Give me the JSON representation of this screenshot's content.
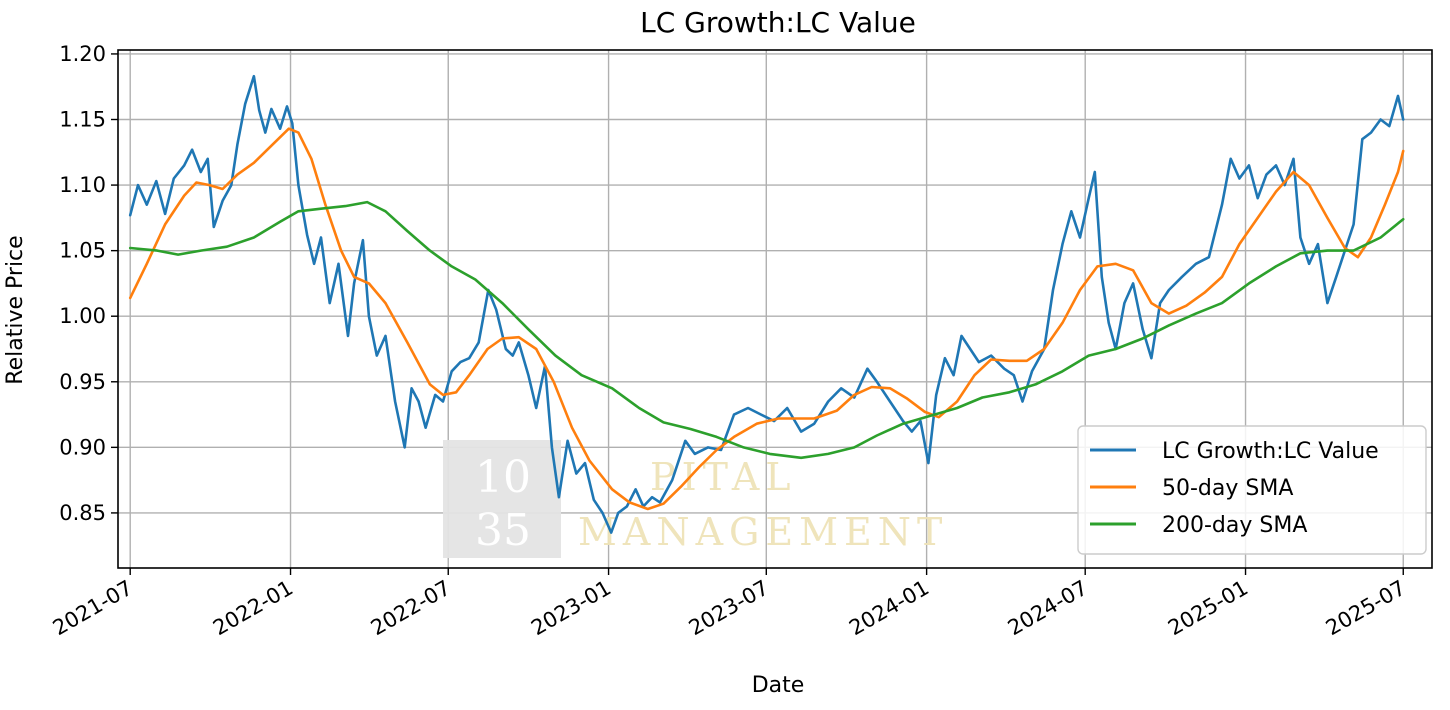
{
  "chart_data": {
    "type": "line",
    "title": "LC Growth:LC Value",
    "xlabel": "Date",
    "ylabel": "Relative Price",
    "x_range": [
      "2021-06-17",
      "2025-08-03"
    ],
    "ylim": [
      0.808,
      1.203
    ],
    "y_ticks": [
      0.85,
      0.9,
      0.95,
      1.0,
      1.05,
      1.1,
      1.15,
      1.2
    ],
    "y_tick_labels": [
      "0.85",
      "0.90",
      "0.95",
      "1.00",
      "1.05",
      "1.10",
      "1.15",
      "1.20"
    ],
    "x_ticks": [
      "2021-07-01",
      "2022-01-01",
      "2022-07-01",
      "2023-01-01",
      "2023-07-01",
      "2024-01-01",
      "2024-07-01",
      "2025-01-01",
      "2025-07-01"
    ],
    "x_tick_labels": [
      "2021-07",
      "2022-01",
      "2022-07",
      "2023-01",
      "2023-07",
      "2024-01",
      "2024-07",
      "2025-01",
      "2025-07"
    ],
    "grid": true,
    "legend_position": "lower-right",
    "series": [
      {
        "name": "LC Growth:LC Value",
        "color": "#1f77b4",
        "points": [
          [
            "2021-07-01",
            1.077
          ],
          [
            "2021-07-10",
            1.1
          ],
          [
            "2021-07-20",
            1.085
          ],
          [
            "2021-07-31",
            1.103
          ],
          [
            "2021-08-10",
            1.078
          ],
          [
            "2021-08-20",
            1.105
          ],
          [
            "2021-09-01",
            1.115
          ],
          [
            "2021-09-10",
            1.127
          ],
          [
            "2021-09-20",
            1.11
          ],
          [
            "2021-09-28",
            1.12
          ],
          [
            "2021-10-05",
            1.068
          ],
          [
            "2021-10-15",
            1.088
          ],
          [
            "2021-10-25",
            1.1
          ],
          [
            "2021-11-01",
            1.131
          ],
          [
            "2021-11-10",
            1.162
          ],
          [
            "2021-11-20",
            1.183
          ],
          [
            "2021-11-26",
            1.157
          ],
          [
            "2021-12-03",
            1.14
          ],
          [
            "2021-12-10",
            1.158
          ],
          [
            "2021-12-20",
            1.143
          ],
          [
            "2021-12-28",
            1.16
          ],
          [
            "2022-01-03",
            1.147
          ],
          [
            "2022-01-10",
            1.1
          ],
          [
            "2022-01-20",
            1.062
          ],
          [
            "2022-01-28",
            1.04
          ],
          [
            "2022-02-05",
            1.06
          ],
          [
            "2022-02-15",
            1.01
          ],
          [
            "2022-02-25",
            1.04
          ],
          [
            "2022-03-08",
            0.985
          ],
          [
            "2022-03-15",
            1.025
          ],
          [
            "2022-03-25",
            1.058
          ],
          [
            "2022-04-01",
            1.0
          ],
          [
            "2022-04-10",
            0.97
          ],
          [
            "2022-04-20",
            0.985
          ],
          [
            "2022-05-01",
            0.935
          ],
          [
            "2022-05-12",
            0.9
          ],
          [
            "2022-05-20",
            0.945
          ],
          [
            "2022-05-28",
            0.935
          ],
          [
            "2022-06-05",
            0.915
          ],
          [
            "2022-06-16",
            0.94
          ],
          [
            "2022-06-25",
            0.935
          ],
          [
            "2022-07-05",
            0.958
          ],
          [
            "2022-07-15",
            0.965
          ],
          [
            "2022-07-25",
            0.968
          ],
          [
            "2022-08-05",
            0.98
          ],
          [
            "2022-08-16",
            1.02
          ],
          [
            "2022-08-25",
            1.005
          ],
          [
            "2022-09-05",
            0.975
          ],
          [
            "2022-09-13",
            0.97
          ],
          [
            "2022-09-20",
            0.98
          ],
          [
            "2022-10-01",
            0.955
          ],
          [
            "2022-10-10",
            0.93
          ],
          [
            "2022-10-20",
            0.962
          ],
          [
            "2022-10-28",
            0.9
          ],
          [
            "2022-11-05",
            0.862
          ],
          [
            "2022-11-15",
            0.905
          ],
          [
            "2022-11-25",
            0.88
          ],
          [
            "2022-12-05",
            0.888
          ],
          [
            "2022-12-15",
            0.86
          ],
          [
            "2022-12-25",
            0.85
          ],
          [
            "2023-01-04",
            0.835
          ],
          [
            "2023-01-12",
            0.85
          ],
          [
            "2023-01-22",
            0.855
          ],
          [
            "2023-02-01",
            0.868
          ],
          [
            "2023-02-10",
            0.855
          ],
          [
            "2023-02-20",
            0.862
          ],
          [
            "2023-03-01",
            0.858
          ],
          [
            "2023-03-15",
            0.875
          ],
          [
            "2023-03-30",
            0.905
          ],
          [
            "2023-04-10",
            0.895
          ],
          [
            "2023-04-25",
            0.9
          ],
          [
            "2023-05-10",
            0.898
          ],
          [
            "2023-05-25",
            0.925
          ],
          [
            "2023-06-10",
            0.93
          ],
          [
            "2023-06-25",
            0.925
          ],
          [
            "2023-07-10",
            0.92
          ],
          [
            "2023-07-25",
            0.93
          ],
          [
            "2023-08-10",
            0.912
          ],
          [
            "2023-08-25",
            0.918
          ],
          [
            "2023-09-10",
            0.935
          ],
          [
            "2023-09-25",
            0.945
          ],
          [
            "2023-10-10",
            0.938
          ],
          [
            "2023-10-25",
            0.96
          ],
          [
            "2023-11-05",
            0.95
          ],
          [
            "2023-11-20",
            0.935
          ],
          [
            "2023-12-05",
            0.92
          ],
          [
            "2023-12-15",
            0.912
          ],
          [
            "2023-12-25",
            0.92
          ],
          [
            "2024-01-03",
            0.888
          ],
          [
            "2024-01-12",
            0.94
          ],
          [
            "2024-01-22",
            0.968
          ],
          [
            "2024-02-01",
            0.955
          ],
          [
            "2024-02-10",
            0.985
          ],
          [
            "2024-02-20",
            0.975
          ],
          [
            "2024-03-01",
            0.965
          ],
          [
            "2024-03-15",
            0.97
          ],
          [
            "2024-03-30",
            0.96
          ],
          [
            "2024-04-10",
            0.955
          ],
          [
            "2024-04-20",
            0.935
          ],
          [
            "2024-05-01",
            0.958
          ],
          [
            "2024-05-15",
            0.975
          ],
          [
            "2024-05-25",
            1.02
          ],
          [
            "2024-06-05",
            1.055
          ],
          [
            "2024-06-15",
            1.08
          ],
          [
            "2024-06-25",
            1.06
          ],
          [
            "2024-07-05",
            1.09
          ],
          [
            "2024-07-12",
            1.11
          ],
          [
            "2024-07-20",
            1.03
          ],
          [
            "2024-07-28",
            0.995
          ],
          [
            "2024-08-05",
            0.975
          ],
          [
            "2024-08-15",
            1.01
          ],
          [
            "2024-08-25",
            1.025
          ],
          [
            "2024-09-05",
            0.99
          ],
          [
            "2024-09-15",
            0.968
          ],
          [
            "2024-09-25",
            1.01
          ],
          [
            "2024-10-05",
            1.02
          ],
          [
            "2024-10-20",
            1.03
          ],
          [
            "2024-11-05",
            1.04
          ],
          [
            "2024-11-20",
            1.045
          ],
          [
            "2024-12-05",
            1.085
          ],
          [
            "2024-12-15",
            1.12
          ],
          [
            "2024-12-25",
            1.105
          ],
          [
            "2025-01-05",
            1.115
          ],
          [
            "2025-01-15",
            1.09
          ],
          [
            "2025-01-25",
            1.108
          ],
          [
            "2025-02-05",
            1.115
          ],
          [
            "2025-02-15",
            1.1
          ],
          [
            "2025-02-25",
            1.12
          ],
          [
            "2025-03-05",
            1.06
          ],
          [
            "2025-03-15",
            1.04
          ],
          [
            "2025-03-25",
            1.055
          ],
          [
            "2025-04-05",
            1.01
          ],
          [
            "2025-04-15",
            1.03
          ],
          [
            "2025-04-25",
            1.05
          ],
          [
            "2025-05-05",
            1.07
          ],
          [
            "2025-05-15",
            1.135
          ],
          [
            "2025-05-25",
            1.14
          ],
          [
            "2025-06-05",
            1.15
          ],
          [
            "2025-06-15",
            1.145
          ],
          [
            "2025-06-25",
            1.168
          ],
          [
            "2025-07-01",
            1.15
          ]
        ]
      },
      {
        "name": "50-day SMA",
        "color": "#ff7f0e",
        "points": [
          [
            "2021-07-01",
            1.014
          ],
          [
            "2021-07-20",
            1.04
          ],
          [
            "2021-08-10",
            1.07
          ],
          [
            "2021-09-01",
            1.092
          ],
          [
            "2021-09-15",
            1.102
          ],
          [
            "2021-09-30",
            1.1
          ],
          [
            "2021-10-15",
            1.097
          ],
          [
            "2021-11-01",
            1.108
          ],
          [
            "2021-11-20",
            1.117
          ],
          [
            "2021-12-10",
            1.13
          ],
          [
            "2021-12-30",
            1.143
          ],
          [
            "2022-01-10",
            1.14
          ],
          [
            "2022-01-25",
            1.12
          ],
          [
            "2022-02-10",
            1.085
          ],
          [
            "2022-02-28",
            1.05
          ],
          [
            "2022-03-15",
            1.03
          ],
          [
            "2022-04-01",
            1.025
          ],
          [
            "2022-04-20",
            1.01
          ],
          [
            "2022-05-15",
            0.98
          ],
          [
            "2022-06-10",
            0.948
          ],
          [
            "2022-06-25",
            0.94
          ],
          [
            "2022-07-10",
            0.942
          ],
          [
            "2022-07-25",
            0.955
          ],
          [
            "2022-08-15",
            0.975
          ],
          [
            "2022-09-01",
            0.983
          ],
          [
            "2022-09-20",
            0.984
          ],
          [
            "2022-10-10",
            0.975
          ],
          [
            "2022-10-30",
            0.95
          ],
          [
            "2022-11-20",
            0.915
          ],
          [
            "2022-12-10",
            0.89
          ],
          [
            "2023-01-05",
            0.868
          ],
          [
            "2023-01-25",
            0.858
          ],
          [
            "2023-02-15",
            0.853
          ],
          [
            "2023-03-05",
            0.857
          ],
          [
            "2023-03-25",
            0.87
          ],
          [
            "2023-04-15",
            0.885
          ],
          [
            "2023-05-05",
            0.898
          ],
          [
            "2023-05-25",
            0.908
          ],
          [
            "2023-06-20",
            0.918
          ],
          [
            "2023-07-15",
            0.922
          ],
          [
            "2023-08-05",
            0.922
          ],
          [
            "2023-08-25",
            0.922
          ],
          [
            "2023-09-20",
            0.928
          ],
          [
            "2023-10-10",
            0.94
          ],
          [
            "2023-10-30",
            0.946
          ],
          [
            "2023-11-20",
            0.945
          ],
          [
            "2023-12-10",
            0.937
          ],
          [
            "2023-12-30",
            0.927
          ],
          [
            "2024-01-15",
            0.923
          ],
          [
            "2024-02-05",
            0.935
          ],
          [
            "2024-02-25",
            0.955
          ],
          [
            "2024-03-15",
            0.967
          ],
          [
            "2024-04-05",
            0.966
          ],
          [
            "2024-04-25",
            0.966
          ],
          [
            "2024-05-15",
            0.975
          ],
          [
            "2024-06-05",
            0.995
          ],
          [
            "2024-06-25",
            1.02
          ],
          [
            "2024-07-15",
            1.038
          ],
          [
            "2024-08-05",
            1.04
          ],
          [
            "2024-08-25",
            1.035
          ],
          [
            "2024-09-15",
            1.01
          ],
          [
            "2024-10-05",
            1.002
          ],
          [
            "2024-10-25",
            1.008
          ],
          [
            "2024-11-15",
            1.018
          ],
          [
            "2024-12-05",
            1.03
          ],
          [
            "2024-12-25",
            1.055
          ],
          [
            "2025-01-15",
            1.075
          ],
          [
            "2025-02-05",
            1.095
          ],
          [
            "2025-02-25",
            1.11
          ],
          [
            "2025-03-15",
            1.1
          ],
          [
            "2025-04-05",
            1.075
          ],
          [
            "2025-04-25",
            1.052
          ],
          [
            "2025-05-10",
            1.045
          ],
          [
            "2025-05-25",
            1.06
          ],
          [
            "2025-06-10",
            1.085
          ],
          [
            "2025-06-25",
            1.11
          ],
          [
            "2025-07-01",
            1.126
          ]
        ]
      },
      {
        "name": "200-day SMA",
        "color": "#2ca02c",
        "points": [
          [
            "2021-07-01",
            1.052
          ],
          [
            "2021-08-01",
            1.05
          ],
          [
            "2021-08-25",
            1.047
          ],
          [
            "2021-09-20",
            1.05
          ],
          [
            "2021-10-20",
            1.053
          ],
          [
            "2021-11-20",
            1.06
          ],
          [
            "2021-12-20",
            1.072
          ],
          [
            "2022-01-10",
            1.08
          ],
          [
            "2022-02-05",
            1.082
          ],
          [
            "2022-03-05",
            1.084
          ],
          [
            "2022-03-30",
            1.087
          ],
          [
            "2022-04-20",
            1.08
          ],
          [
            "2022-05-15",
            1.065
          ],
          [
            "2022-06-10",
            1.05
          ],
          [
            "2022-07-05",
            1.038
          ],
          [
            "2022-08-01",
            1.028
          ],
          [
            "2022-09-01",
            1.01
          ],
          [
            "2022-10-01",
            0.99
          ],
          [
            "2022-11-01",
            0.97
          ],
          [
            "2022-12-01",
            0.955
          ],
          [
            "2023-01-05",
            0.945
          ],
          [
            "2023-02-05",
            0.93
          ],
          [
            "2023-03-05",
            0.919
          ],
          [
            "2023-04-05",
            0.914
          ],
          [
            "2023-05-05",
            0.908
          ],
          [
            "2023-06-05",
            0.9
          ],
          [
            "2023-07-05",
            0.895
          ],
          [
            "2023-08-10",
            0.892
          ],
          [
            "2023-09-10",
            0.895
          ],
          [
            "2023-10-10",
            0.9
          ],
          [
            "2023-11-05",
            0.909
          ],
          [
            "2023-12-05",
            0.918
          ],
          [
            "2024-01-05",
            0.924
          ],
          [
            "2024-02-05",
            0.93
          ],
          [
            "2024-03-05",
            0.938
          ],
          [
            "2024-04-05",
            0.942
          ],
          [
            "2024-05-05",
            0.948
          ],
          [
            "2024-06-05",
            0.958
          ],
          [
            "2024-07-05",
            0.97
          ],
          [
            "2024-08-05",
            0.975
          ],
          [
            "2024-09-05",
            0.983
          ],
          [
            "2024-10-05",
            0.993
          ],
          [
            "2024-11-05",
            1.002
          ],
          [
            "2024-12-05",
            1.01
          ],
          [
            "2025-01-05",
            1.025
          ],
          [
            "2025-02-05",
            1.038
          ],
          [
            "2025-03-05",
            1.048
          ],
          [
            "2025-04-05",
            1.05
          ],
          [
            "2025-05-05",
            1.05
          ],
          [
            "2025-06-05",
            1.06
          ],
          [
            "2025-07-01",
            1.074
          ]
        ]
      }
    ]
  }
}
